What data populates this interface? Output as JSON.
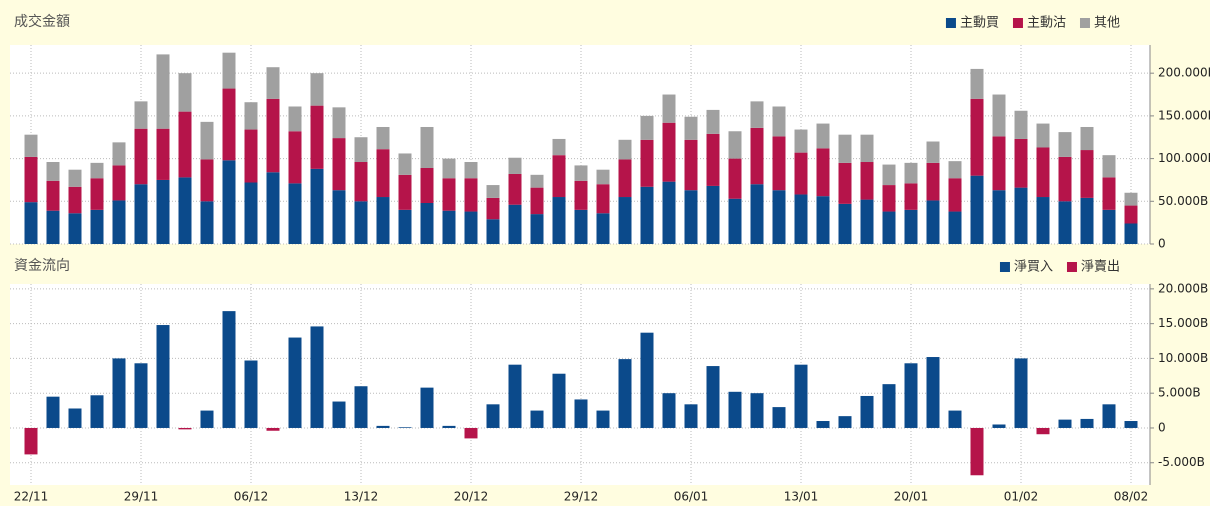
{
  "chart_data": [
    {
      "type": "bar",
      "stacked": true,
      "title": "成交金額",
      "legend": "upper right",
      "grid": true,
      "ylim": [
        0,
        233
      ],
      "yticks": [
        0,
        {
          "value": 50,
          "label": "50.000B"
        },
        {
          "value": 100,
          "label": "100.000B"
        },
        {
          "value": 150,
          "label": "150.000B"
        },
        {
          "value": 200,
          "label": "200.000B"
        }
      ],
      "series": [
        {
          "name": "主動買",
          "color": "#0b4a8b",
          "values": [
            49,
            39,
            36,
            40,
            51,
            70,
            75,
            78,
            50,
            98,
            72,
            84,
            71,
            88,
            63,
            50,
            55,
            40,
            48,
            39,
            38,
            29,
            46,
            35,
            55,
            40,
            36,
            55,
            67,
            73,
            63,
            68,
            53,
            70,
            63,
            58,
            56,
            47,
            52,
            38,
            40,
            51,
            38,
            80,
            63,
            66,
            55,
            50,
            54,
            40,
            24
          ]
        },
        {
          "name": "主動沽",
          "color": "#b5144a",
          "values": [
            53,
            35,
            31,
            37,
            41,
            65,
            60,
            77,
            49,
            84,
            62,
            86,
            61,
            74,
            61,
            46,
            56,
            41,
            41,
            38,
            39,
            25,
            36,
            31,
            49,
            34,
            34,
            44,
            55,
            69,
            59,
            61,
            47,
            66,
            63,
            49,
            56,
            48,
            44,
            31,
            31,
            44,
            39,
            90,
            63,
            57,
            58,
            52,
            56,
            38,
            21
          ]
        },
        {
          "name": "其他",
          "color": "#a0a0a0",
          "values": [
            26,
            22,
            20,
            18,
            27,
            32,
            87,
            45,
            44,
            42,
            32,
            37,
            29,
            38,
            36,
            29,
            26,
            25,
            48,
            23,
            19,
            15,
            19,
            15,
            19,
            18,
            17,
            23,
            28,
            33,
            27,
            28,
            32,
            31,
            35,
            27,
            29,
            33,
            32,
            24,
            24,
            25,
            20,
            35,
            49,
            33,
            28,
            29,
            27,
            26,
            15
          ]
        }
      ]
    },
    {
      "type": "bar",
      "title": "資金流向",
      "legend": "upper right",
      "grid": true,
      "ylim": [
        -8.2,
        20.7
      ],
      "yticks": [
        {
          "value": -5,
          "label": "-5.000B"
        },
        0,
        {
          "value": 5,
          "label": "5.000B"
        },
        {
          "value": 10,
          "label": "10.000B"
        },
        {
          "value": 15,
          "label": "15.000B"
        },
        {
          "value": 20,
          "label": "20.000B"
        }
      ],
      "categories": [
        "22/11",
        null,
        null,
        null,
        null,
        "29/11",
        null,
        null,
        null,
        null,
        "06/12",
        null,
        null,
        null,
        null,
        "13/12",
        null,
        null,
        null,
        null,
        "20/12",
        null,
        null,
        null,
        null,
        "29/12",
        null,
        null,
        null,
        null,
        "06/01",
        null,
        null,
        null,
        null,
        "13/01",
        null,
        null,
        null,
        null,
        "20/01",
        null,
        null,
        null,
        null,
        "01/02",
        null,
        null,
        null,
        null,
        "08/02"
      ],
      "series": [
        {
          "name": "淨買入",
          "color": "#0b4a8b",
          "values": [
            null,
            4.5,
            2.8,
            4.7,
            10,
            9.3,
            14.8,
            null,
            2.5,
            16.8,
            9.7,
            null,
            13,
            14.6,
            3.8,
            6,
            0.3,
            0.1,
            5.8,
            0.3,
            null,
            3.4,
            9.1,
            2.5,
            7.8,
            4.1,
            2.5,
            9.9,
            13.7,
            5,
            3.4,
            8.9,
            5.2,
            5,
            3,
            9.1,
            1,
            1.7,
            4.6,
            6.3,
            9.3,
            10.2,
            2.5,
            null,
            0.5,
            10,
            null,
            1.2,
            1.3,
            3.4,
            1.0
          ]
        },
        {
          "name": "淨賣出",
          "color": "#b5144a",
          "values": [
            -3.8,
            null,
            null,
            null,
            null,
            null,
            null,
            -0.2,
            null,
            null,
            null,
            -0.4,
            null,
            null,
            null,
            null,
            null,
            null,
            null,
            null,
            -1.5,
            null,
            null,
            null,
            null,
            null,
            null,
            null,
            null,
            null,
            null,
            null,
            null,
            null,
            null,
            null,
            null,
            null,
            null,
            null,
            null,
            null,
            null,
            -6.8,
            null,
            null,
            -0.9,
            null,
            null,
            null,
            null
          ]
        }
      ]
    }
  ]
}
